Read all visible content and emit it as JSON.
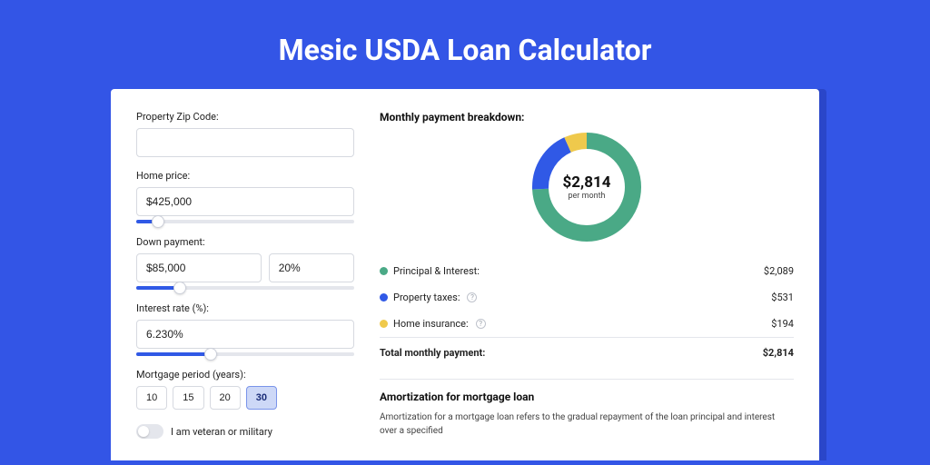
{
  "page": {
    "title": "Mesic USDA Loan Calculator",
    "background_color": "#3355e6",
    "card_shadow_color": "#2a46c9"
  },
  "form": {
    "zip_label": "Property Zip Code:",
    "zip_value": "",
    "home_price_label": "Home price:",
    "home_price_value": "$425,000",
    "home_price_slider_pct": 10,
    "down_payment_label": "Down payment:",
    "down_payment_value": "$85,000",
    "down_payment_pct_value": "20%",
    "down_payment_slider_pct": 20,
    "interest_label": "Interest rate (%):",
    "interest_value": "6.230%",
    "interest_slider_pct": 34,
    "period_label": "Mortgage period (years):",
    "periods": [
      "10",
      "15",
      "20",
      "30"
    ],
    "period_active_index": 3,
    "veteran_label": "I am veteran or military",
    "veteran_on": false
  },
  "breakdown": {
    "title": "Monthly payment breakdown:",
    "total_value": "$2,814",
    "total_sub": "per month",
    "donut": {
      "size": 120,
      "stroke": 18,
      "segments": [
        {
          "key": "pi",
          "label": "Principal & Interest:",
          "amount": "$2,089",
          "color": "#4aa986",
          "fraction": 0.742,
          "has_info": false
        },
        {
          "key": "tax",
          "label": "Property taxes:",
          "amount": "$531",
          "color": "#3059e6",
          "fraction": 0.189,
          "has_info": true
        },
        {
          "key": "ins",
          "label": "Home insurance:",
          "amount": "$194",
          "color": "#efc94c",
          "fraction": 0.069,
          "has_info": true
        }
      ]
    },
    "total_label": "Total monthly payment:",
    "total_amount": "$2,814"
  },
  "amortization": {
    "title": "Amortization for mortgage loan",
    "body": "Amortization for a mortgage loan refers to the gradual repayment of the loan principal and interest over a specified"
  }
}
